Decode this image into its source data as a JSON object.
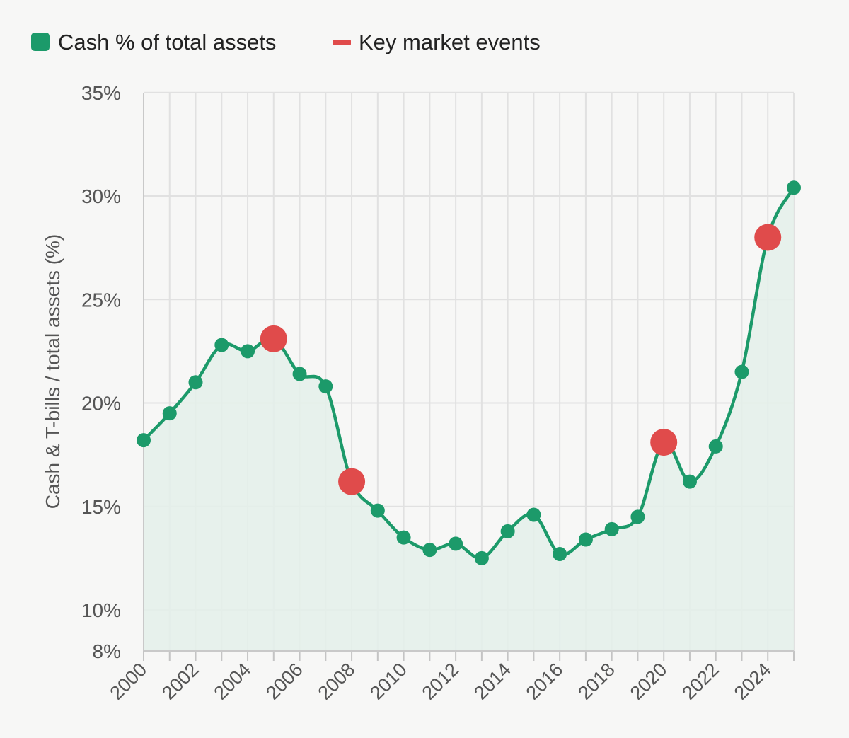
{
  "legend": {
    "series_label": "Cash % of total assets",
    "events_label": "Key market events"
  },
  "colors": {
    "series": "#1c9a6a",
    "area": "#e4f0ea",
    "events": "#e04b4b",
    "grid": "#e1e1e1",
    "axis_text": "#555555",
    "legend_text": "#222222"
  },
  "chart_data": {
    "type": "line",
    "title": "",
    "xlabel": "",
    "ylabel": "Cash & T-bills / total assets (%)",
    "x": [
      2000,
      2001,
      2002,
      2003,
      2004,
      2005,
      2006,
      2007,
      2008,
      2009,
      2010,
      2011,
      2012,
      2013,
      2014,
      2015,
      2016,
      2017,
      2018,
      2019,
      2020,
      2021,
      2022,
      2023,
      2024,
      2025
    ],
    "series": [
      {
        "name": "Cash % of total assets",
        "values": [
          18.2,
          19.5,
          21.0,
          22.8,
          22.5,
          23.1,
          21.4,
          20.8,
          16.2,
          14.8,
          13.5,
          12.9,
          13.2,
          12.5,
          13.8,
          14.6,
          12.7,
          13.4,
          13.9,
          14.5,
          18.1,
          16.2,
          17.9,
          21.5,
          28.0,
          30.4
        ]
      }
    ],
    "events": {
      "name": "Key market events",
      "x": [
        2005,
        2008,
        2020,
        2024
      ],
      "values": [
        23.1,
        16.2,
        18.1,
        28.0
      ]
    },
    "xlim": [
      2000,
      2025
    ],
    "ylim": [
      8,
      35
    ],
    "y_ticks": [
      8,
      10,
      15,
      20,
      25,
      30,
      35
    ],
    "y_tick_labels": [
      "8%",
      "10%",
      "15%",
      "20%",
      "25%",
      "30%",
      "35%"
    ],
    "x_ticks": [
      2000,
      2002,
      2004,
      2006,
      2008,
      2010,
      2012,
      2014,
      2016,
      2018,
      2020,
      2022,
      2024
    ],
    "x_tick_labels": [
      "2000",
      "2002",
      "2004",
      "2006",
      "2008",
      "2010",
      "2012",
      "2014",
      "2016",
      "2018",
      "2020",
      "2022",
      "2024"
    ],
    "grid": true,
    "area_fill": true,
    "legend_position": "top-left"
  }
}
